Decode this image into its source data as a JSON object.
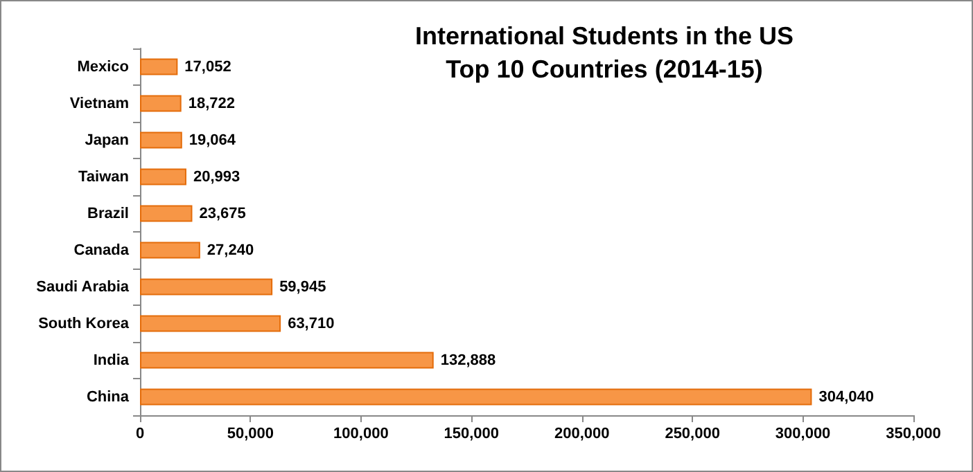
{
  "chart_data": {
    "type": "bar",
    "orientation": "horizontal",
    "title": "International Students in the US\nTop 10 Countries (2014-15)",
    "categories": [
      "Mexico",
      "Vietnam",
      "Japan",
      "Taiwan",
      "Brazil",
      "Canada",
      "Saudi Arabia",
      "South Korea",
      "India",
      "China"
    ],
    "values": [
      17052,
      18722,
      19064,
      20993,
      23675,
      27240,
      59945,
      63710,
      132888,
      304040
    ],
    "value_labels": [
      "17,052",
      "18,722",
      "19,064",
      "20,993",
      "23,675",
      "27,240",
      "59,945",
      "63,710",
      "132,888",
      "304,040"
    ],
    "color": "#f79646",
    "xlim": [
      0,
      350000
    ],
    "xticks": [
      {
        "value": 0,
        "label": "0"
      },
      {
        "value": 50000,
        "label": "50,000"
      },
      {
        "value": 100000,
        "label": "100,000"
      },
      {
        "value": 150000,
        "label": "150,000"
      },
      {
        "value": 200000,
        "label": "200,000"
      },
      {
        "value": 250000,
        "label": "250,000"
      },
      {
        "value": 300000,
        "label": "300,000"
      },
      {
        "value": 350000,
        "label": "350,000"
      }
    ],
    "grid": false
  }
}
